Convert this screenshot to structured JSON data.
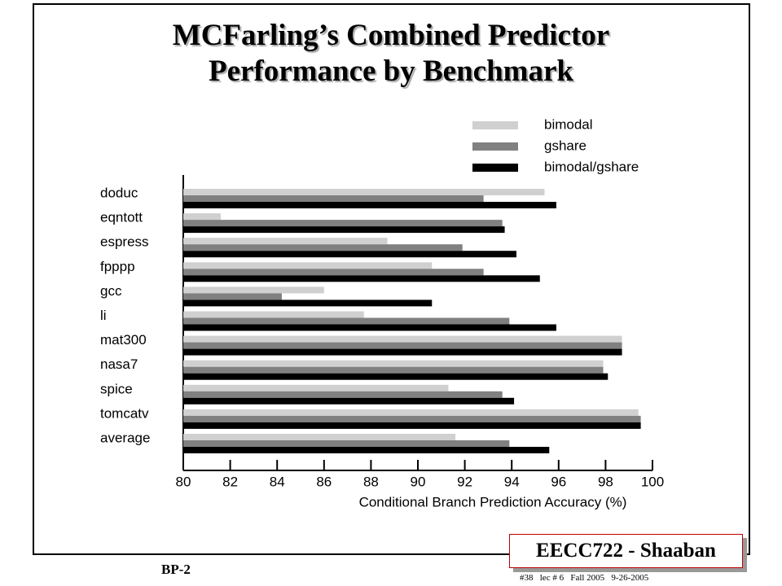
{
  "chart_data": {
    "type": "hbar",
    "title": "MCFarling’s Combined Predictor Performance by Benchmark",
    "x_label": "Conditional Branch Prediction Accuracy (%)",
    "categories": [
      "doduc",
      "eqntott",
      "espress",
      "fpppp",
      "gcc",
      "li",
      "mat300",
      "nasa7",
      "spice",
      "tomcatv",
      "average"
    ],
    "series": [
      {
        "name": "bimodal",
        "color": "#d0d0d0",
        "values": [
          95.4,
          81.6,
          88.7,
          90.6,
          86.0,
          87.7,
          98.7,
          97.9,
          91.3,
          99.4,
          91.6
        ]
      },
      {
        "name": "gshare",
        "color": "#808080",
        "values": [
          92.8,
          93.6,
          91.9,
          92.8,
          84.2,
          93.9,
          98.7,
          97.9,
          93.6,
          99.5,
          93.9
        ]
      },
      {
        "name": "bimodal/gshare",
        "color": "#000000",
        "values": [
          95.9,
          93.7,
          94.2,
          95.2,
          90.6,
          95.9,
          98.7,
          98.1,
          94.1,
          99.5,
          95.6
        ]
      }
    ],
    "xlim": [
      80,
      100
    ],
    "xticks": [
      80,
      82,
      84,
      86,
      88,
      90,
      92,
      94,
      96,
      98,
      100
    ],
    "legend": "upper right"
  },
  "footer": {
    "course": "EECC722 - Shaaban",
    "slide": "BP-2",
    "info": "#38   lec # 6   Fall 2005   9-26-2005"
  }
}
